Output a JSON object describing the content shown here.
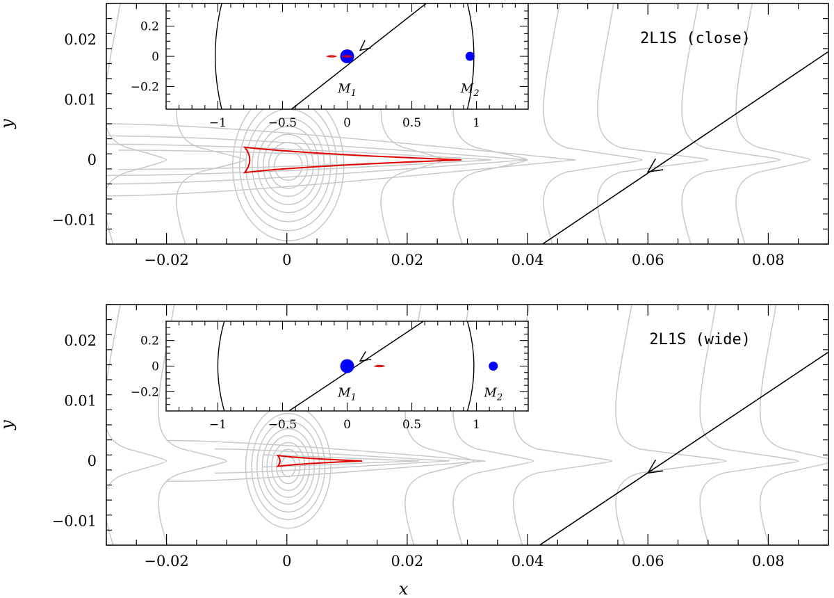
{
  "chart_data": [
    {
      "type": "line",
      "panel_label": "2L1S (close)",
      "xlabel": "",
      "ylabel": "y",
      "xlim": [
        -0.03,
        0.09
      ],
      "ylim": [
        -0.014,
        0.026
      ],
      "xticks": [
        -0.02,
        0,
        0.02,
        0.04,
        0.06,
        0.08
      ],
      "xtick_labels": [
        "−0.02",
        "0",
        "0.02",
        "0.04",
        "0.06",
        "0.08"
      ],
      "yticks": [
        -0.01,
        0,
        0.01,
        0.02
      ],
      "ytick_labels": [
        "−0.01",
        "0",
        "0.01",
        "0.02"
      ],
      "series": [
        {
          "role": "source-trajectory",
          "color": "#000000",
          "points": [
            [
              0.0425,
              -0.014
            ],
            [
              0.0903,
              0.0182
            ]
          ],
          "arrow_at": [
            0.06,
            -0.002
          ]
        },
        {
          "role": "caustic",
          "color": "#e00000",
          "shape": "cusp-to-right",
          "left_x": -0.007,
          "tip_x": 0.029,
          "half_height": 0.0021
        }
      ],
      "contour_color": "#c8c8c8",
      "inset": {
        "xlim": [
          -1.4,
          1.4
        ],
        "ylim": [
          -0.35,
          0.35
        ],
        "xticks": [
          -1,
          -0.5,
          0,
          0.5,
          1
        ],
        "xtick_labels": [
          "−1",
          "−0.5",
          "0",
          "0.5",
          "1"
        ],
        "yticks": [
          -0.2,
          0,
          0.2
        ],
        "ytick_labels": [
          "−0.2",
          "0",
          "0.2"
        ],
        "masses": [
          {
            "label": "M",
            "sub": "1",
            "x": 0.0,
            "y": 0.0,
            "size": "large",
            "color": "#0000ff"
          },
          {
            "label": "M",
            "sub": "2",
            "x": 0.95,
            "y": 0.0,
            "size": "small",
            "color": "#0000ff"
          }
        ],
        "critical_curve_x": [
          -1.02,
          0.98
        ],
        "trajectory": [
          [
            -0.43,
            -0.35
          ],
          [
            0.61,
            0.35
          ]
        ],
        "arrow_at": [
          0.1,
          0.04
        ],
        "caustics_x": [
          -0.12,
          0.0
        ]
      }
    },
    {
      "type": "line",
      "panel_label": "2L1S (wide)",
      "xlabel": "x",
      "ylabel": "y",
      "xlim": [
        -0.03,
        0.09
      ],
      "ylim": [
        -0.014,
        0.026
      ],
      "xticks": [
        -0.02,
        0,
        0.02,
        0.04,
        0.06,
        0.08
      ],
      "xtick_labels": [
        "−0.02",
        "0",
        "0.02",
        "0.04",
        "0.06",
        "0.08"
      ],
      "yticks": [
        -0.01,
        0,
        0.01,
        0.02
      ],
      "ytick_labels": [
        "−0.01",
        "0",
        "0.01",
        "0.02"
      ],
      "series": [
        {
          "role": "source-trajectory",
          "color": "#000000",
          "points": [
            [
              0.042,
              -0.014
            ],
            [
              0.0903,
              0.0183
            ]
          ],
          "arrow_at": [
            0.06,
            -0.002
          ]
        },
        {
          "role": "caustic",
          "color": "#e00000",
          "shape": "cusp-to-right",
          "left_x": -0.0015,
          "tip_x": 0.0125,
          "half_height": 0.0009
        }
      ],
      "contour_color": "#c8c8c8",
      "inset": {
        "xlim": [
          -1.4,
          1.4
        ],
        "ylim": [
          -0.35,
          0.35
        ],
        "xticks": [
          -1,
          -0.5,
          0,
          0.5,
          1
        ],
        "xtick_labels": [
          "−1",
          "−0.5",
          "0",
          "0.5",
          "1"
        ],
        "yticks": [
          -0.2,
          0,
          0.2
        ],
        "ytick_labels": [
          "−0.2",
          "0",
          "0.2"
        ],
        "masses": [
          {
            "label": "M",
            "sub": "1",
            "x": 0.0,
            "y": 0.0,
            "size": "large",
            "color": "#0000ff"
          },
          {
            "label": "M",
            "sub": "2",
            "x": 1.13,
            "y": 0.0,
            "size": "small",
            "color": "#0000ff"
          }
        ],
        "critical_curve_x": [
          -1.0,
          0.98
        ],
        "trajectory": [
          [
            -0.45,
            -0.35
          ],
          [
            0.59,
            0.35
          ]
        ],
        "arrow_at": [
          0.1,
          0.04
        ],
        "caustics_x": [
          0.25
        ]
      }
    }
  ]
}
